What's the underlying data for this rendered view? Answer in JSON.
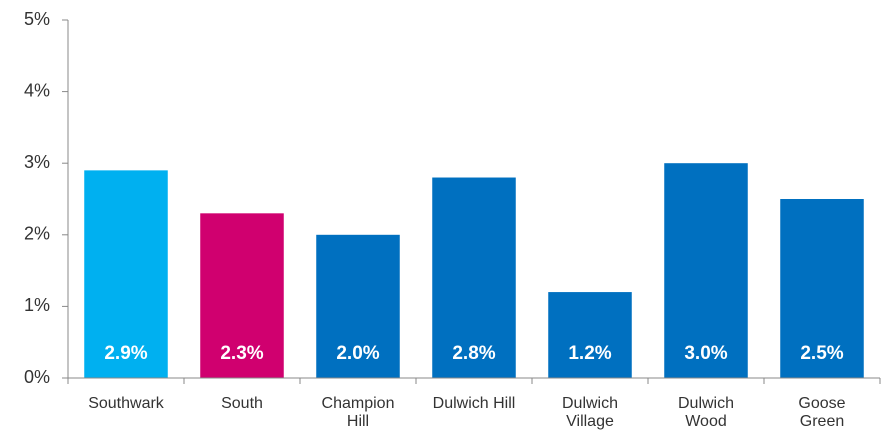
{
  "chart_data": {
    "type": "bar",
    "categories": [
      "Southwark",
      "South",
      "Champion Hill",
      "Dulwich Hill",
      "Dulwich Village",
      "Dulwich Wood",
      "Goose Green"
    ],
    "values": [
      2.9,
      2.3,
      2.0,
      2.8,
      1.2,
      3.0,
      2.5
    ],
    "value_labels": [
      "2.9%",
      "2.3%",
      "2.0%",
      "2.8%",
      "1.2%",
      "3.0%",
      "2.5%"
    ],
    "colors": [
      "#00b0f0",
      "#d0006f",
      "#0070c0",
      "#0070c0",
      "#0070c0",
      "#0070c0",
      "#0070c0"
    ],
    "ylim": [
      0,
      5
    ],
    "yticks": [
      {
        "value": 0,
        "label": "0%"
      },
      {
        "value": 1,
        "label": "1%"
      },
      {
        "value": 2,
        "label": "2%"
      },
      {
        "value": 3,
        "label": "3%"
      },
      {
        "value": 4,
        "label": "4%"
      },
      {
        "value": 5,
        "label": "5%"
      }
    ],
    "grid": false
  }
}
